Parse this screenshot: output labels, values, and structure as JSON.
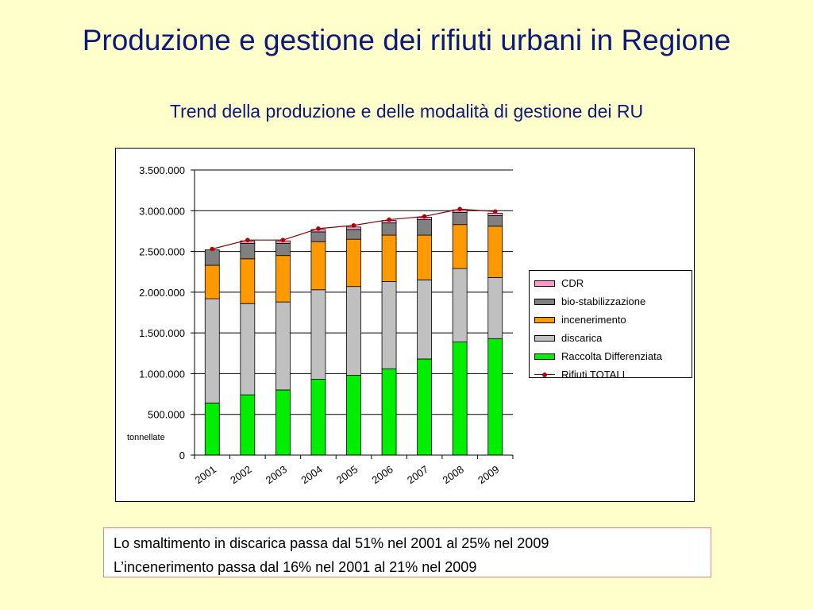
{
  "slide": {
    "title": "Produzione e gestione dei rifiuti urbani in Regione",
    "subtitle": "Trend della produzione e delle modalità di gestione dei RU"
  },
  "chart_data": {
    "type": "bar",
    "stacked": true,
    "categories": [
      "2001",
      "2002",
      "2003",
      "2004",
      "2005",
      "2006",
      "2007",
      "2008",
      "2009"
    ],
    "ylim": [
      0,
      3500000
    ],
    "yticks": [
      {
        "value": 0,
        "label": "0"
      },
      {
        "value": 500000,
        "label": "500.000"
      },
      {
        "value": 1000000,
        "label": "1.000.000"
      },
      {
        "value": 1500000,
        "label": "1.500.000"
      },
      {
        "value": 2000000,
        "label": "2.000.000"
      },
      {
        "value": 2500000,
        "label": "2.500.000"
      },
      {
        "value": 3000000,
        "label": "3.000.000"
      },
      {
        "value": 3500000,
        "label": "3.500.000"
      }
    ],
    "ylabel": "tonnellate",
    "grid": true,
    "legend_position": "right",
    "series": [
      {
        "name": "Raccolta Differenziata",
        "color": "#00ee00",
        "values": [
          640000,
          740000,
          800000,
          930000,
          980000,
          1060000,
          1180000,
          1390000,
          1430000
        ]
      },
      {
        "name": "discarica",
        "color": "#c0c0c0",
        "values": [
          1280000,
          1120000,
          1080000,
          1100000,
          1090000,
          1070000,
          970000,
          900000,
          750000
        ]
      },
      {
        "name": "incenerimento",
        "color": "#ff9900",
        "values": [
          410000,
          550000,
          570000,
          590000,
          580000,
          570000,
          550000,
          540000,
          630000
        ]
      },
      {
        "name": "bio-stabilizzazione",
        "color": "#808080",
        "values": [
          190000,
          190000,
          150000,
          120000,
          120000,
          150000,
          190000,
          150000,
          130000
        ]
      },
      {
        "name": "CDR",
        "color": "#ff99cc",
        "values": [
          0,
          30000,
          30000,
          30000,
          30000,
          30000,
          30000,
          30000,
          30000
        ]
      }
    ],
    "line_series": {
      "name": "Rifiuti TOTALI",
      "color": "#8b0000",
      "values": [
        2530000,
        2640000,
        2640000,
        2780000,
        2820000,
        2890000,
        2930000,
        3020000,
        2990000
      ]
    }
  },
  "notes": [
    "Lo smaltimento in discarica passa dal 51% nel 2001 al 25% nel 2009",
    "L’incenerimento passa dal 16% nel 2001 al 21% nel 2009"
  ]
}
